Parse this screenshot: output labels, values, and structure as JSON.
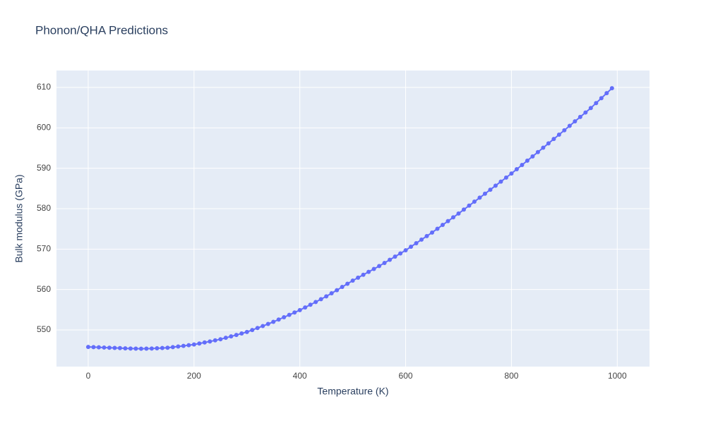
{
  "chart_data": {
    "type": "line",
    "title": "Phonon/QHA Predictions",
    "x_label": "Temperature (K)",
    "y_label": "Bulk modulus (GPa)",
    "x": [
      0,
      10,
      20,
      30,
      40,
      50,
      60,
      70,
      80,
      90,
      100,
      110,
      120,
      130,
      140,
      150,
      160,
      170,
      180,
      190,
      200,
      210,
      220,
      230,
      240,
      250,
      260,
      270,
      280,
      290,
      300,
      310,
      320,
      330,
      340,
      350,
      360,
      370,
      380,
      390,
      400,
      410,
      420,
      430,
      440,
      450,
      460,
      470,
      480,
      490,
      500,
      510,
      520,
      530,
      540,
      550,
      560,
      570,
      580,
      590,
      600,
      610,
      620,
      630,
      640,
      650,
      660,
      670,
      680,
      690,
      700,
      710,
      720,
      730,
      740,
      750,
      760,
      770,
      780,
      790,
      800,
      810,
      820,
      830,
      840,
      850,
      860,
      870,
      880,
      890,
      900,
      910,
      920,
      930,
      940,
      950,
      960,
      970,
      980,
      990
    ],
    "series": [
      {
        "name": "Bulk modulus",
        "color": "#636efa",
        "values": [
          545.8,
          545.75,
          545.7,
          545.65,
          545.6,
          545.55,
          545.5,
          545.45,
          545.4,
          545.37,
          545.35,
          545.37,
          545.4,
          545.47,
          545.53,
          545.6,
          545.75,
          545.9,
          546.05,
          546.22,
          546.4,
          546.65,
          546.9,
          547.15,
          547.42,
          547.7,
          548.05,
          548.4,
          548.75,
          549.12,
          549.5,
          549.98,
          550.47,
          550.97,
          551.48,
          552.0,
          552.57,
          553.14,
          553.72,
          554.31,
          554.9,
          555.57,
          556.24,
          556.92,
          557.61,
          558.3,
          559.07,
          559.84,
          560.63,
          561.42,
          562.2,
          562.92,
          563.64,
          564.36,
          565.08,
          565.8,
          566.58,
          567.36,
          568.14,
          568.92,
          569.7,
          570.58,
          571.46,
          572.34,
          573.22,
          574.1,
          575.04,
          575.98,
          576.92,
          577.86,
          578.8,
          579.78,
          580.76,
          581.74,
          582.72,
          583.7,
          584.7,
          585.7,
          586.7,
          587.7,
          588.7,
          589.76,
          590.82,
          591.88,
          592.94,
          594.0,
          595.08,
          596.16,
          597.24,
          598.32,
          599.4,
          600.5,
          601.6,
          602.7,
          603.8,
          604.9,
          606.13,
          607.35,
          608.58,
          609.8
        ]
      }
    ],
    "xlim": [
      -60,
      1061
    ],
    "ylim": [
      540.93,
      614.19
    ],
    "xticks": [
      0,
      200,
      400,
      600,
      800,
      1000
    ],
    "yticks": [
      550,
      560,
      570,
      580,
      590,
      600,
      610
    ],
    "grid": true,
    "markers": true
  }
}
